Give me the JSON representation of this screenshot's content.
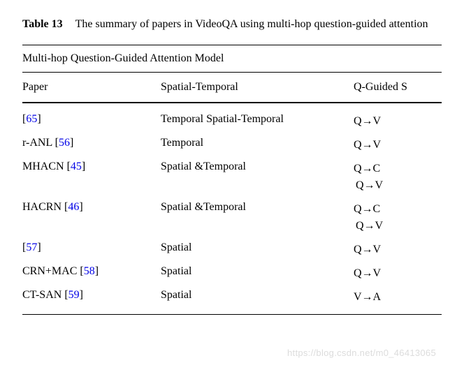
{
  "caption": {
    "label": "Table 13",
    "text": "The summary of papers in VideoQA using multi-hop question-guided attention"
  },
  "section_title": "Multi-hop Question-Guided Attention Model",
  "headers": {
    "paper": "Paper",
    "spatial_temporal": "Spatial-Temporal",
    "q_guided": "Q-Guided S"
  },
  "rows": [
    {
      "paper_prefix": "",
      "cite": "65",
      "paper_suffix": "",
      "st": "Temporal Spatial-Temporal",
      "qg": [
        "Q→V"
      ]
    },
    {
      "paper_prefix": "r-ANL ",
      "cite": "56",
      "paper_suffix": "",
      "st": "Temporal",
      "qg": [
        "Q→V"
      ]
    },
    {
      "paper_prefix": "MHACN ",
      "cite": "45",
      "paper_suffix": "",
      "st": "Spatial &Temporal",
      "qg": [
        "Q→C",
        "Q→V"
      ]
    },
    {
      "paper_prefix": "HACRN ",
      "cite": "46",
      "paper_suffix": "",
      "st": "Spatial &Temporal",
      "qg": [
        "Q→C",
        "Q→V"
      ]
    },
    {
      "paper_prefix": "",
      "cite": "57",
      "paper_suffix": "",
      "st": "Spatial",
      "qg": [
        "Q→V"
      ]
    },
    {
      "paper_prefix": "CRN+MAC ",
      "cite": "58",
      "paper_suffix": "",
      "st": "Spatial",
      "qg": [
        "Q→V"
      ]
    },
    {
      "paper_prefix": "CT-SAN ",
      "cite": "59",
      "paper_suffix": "",
      "st": "Spatial",
      "qg": [
        "V→A"
      ]
    }
  ],
  "watermark": "https://blog.csdn.net/m0_46413065",
  "colors": {
    "cite": "#0000e6",
    "text": "#000000",
    "background": "#ffffff",
    "watermark": "#dcdcdc"
  }
}
